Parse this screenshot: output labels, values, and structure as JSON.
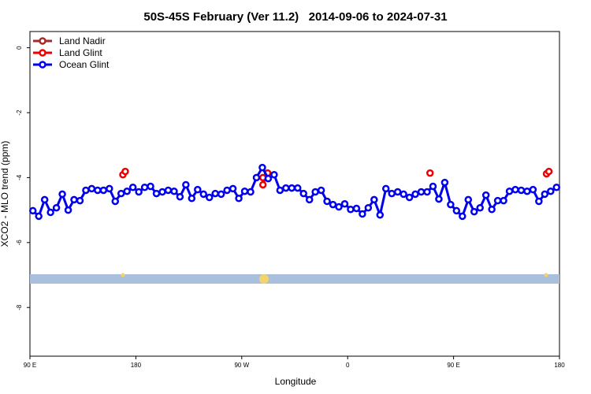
{
  "chart_data": {
    "type": "line",
    "title": "50S-45S February (Ver 11.2)   2014-09-06 to 2024-07-31",
    "x_label": "Longitude",
    "y_label": "XCO2 - MLO trend (ppm)",
    "xlim": [
      90,
      540
    ],
    "ylim": [
      -9.5,
      0.5
    ],
    "xticks": [
      {
        "value": 90,
        "label": "90 E"
      },
      180,
      {
        "value": 270,
        "label": "90 W"
      },
      {
        "value": 360,
        "label": "0"
      },
      {
        "value": 450,
        "label": "90 E"
      },
      {
        "value": 540,
        "label": "180"
      }
    ],
    "yticks": [
      0,
      -2,
      -4,
      -6,
      -8
    ],
    "legend": "top-left",
    "series": [
      {
        "name": "Land Nadir",
        "color": "#a52a2a",
        "x": [
          292
        ],
        "values": [
          -3.88
        ]
      },
      {
        "name": "Land Glint",
        "color": "#ee0000",
        "x": [
          169,
          171,
          null,
          288,
          288,
          292,
          null,
          430,
          null,
          529,
          531
        ],
        "values": [
          -3.91,
          -3.81,
          null,
          -4.0,
          -4.22,
          -3.86,
          null,
          -3.86,
          null,
          -3.88,
          -3.81
        ]
      },
      {
        "name": "Ocean Glint",
        "color": "#0000ee",
        "x": [
          92.5,
          97.5,
          102.5,
          107.5,
          112.5,
          117.5,
          122.5,
          127.5,
          132.5,
          137.5,
          142.5,
          147.5,
          152.5,
          157.5,
          162.5,
          167.5,
          172.5,
          177.5,
          182.5,
          187.5,
          192.5,
          197.5,
          202.5,
          207.5,
          212.5,
          217.5,
          222.5,
          227.5,
          232.5,
          237.5,
          242.5,
          247.5,
          252.5,
          257.5,
          262.5,
          267.5,
          272.5,
          277.5,
          282.5,
          287.5,
          292.5,
          297.5,
          302.5,
          307.5,
          312.5,
          317.5,
          322.5,
          327.5,
          332.5,
          337.5,
          342.5,
          347.5,
          352.5,
          357.5,
          362.5,
          367.5,
          372.5,
          377.5,
          382.5,
          387.5,
          392.5,
          397.5,
          402.5,
          407.5,
          412.5,
          417.5,
          422.5,
          427.5,
          432.5,
          437.5,
          442.5,
          447.5,
          452.5,
          457.5,
          462.5,
          467.5,
          472.5,
          477.5,
          482.5,
          487.5,
          492.5,
          497.5,
          502.5,
          507.5,
          512.5,
          517.5,
          522.5,
          527.5,
          532.5,
          537.5
        ],
        "values": [
          -5.02,
          -5.19,
          -4.68,
          -5.07,
          -4.93,
          -4.51,
          -5.0,
          -4.68,
          -4.71,
          -4.39,
          -4.34,
          -4.39,
          -4.39,
          -4.34,
          -4.73,
          -4.49,
          -4.42,
          -4.3,
          -4.44,
          -4.3,
          -4.27,
          -4.49,
          -4.44,
          -4.39,
          -4.42,
          -4.59,
          -4.22,
          -4.64,
          -4.37,
          -4.51,
          -4.61,
          -4.49,
          -4.51,
          -4.39,
          -4.34,
          -4.64,
          -4.42,
          -4.44,
          -4.0,
          -3.69,
          -4.03,
          -3.91,
          -4.39,
          -4.32,
          -4.32,
          -4.32,
          -4.49,
          -4.68,
          -4.44,
          -4.39,
          -4.73,
          -4.83,
          -4.9,
          -4.81,
          -4.98,
          -4.95,
          -5.12,
          -4.93,
          -4.68,
          -5.15,
          -4.34,
          -4.49,
          -4.44,
          -4.51,
          -4.61,
          -4.51,
          -4.44,
          -4.44,
          -4.27,
          -4.66,
          -4.15,
          -4.83,
          -5.02,
          -5.19,
          -4.68,
          -5.05,
          -4.93,
          -4.54,
          -4.98,
          -4.71,
          -4.71,
          -4.42,
          -4.37,
          -4.39,
          -4.42,
          -4.37,
          -4.73,
          -4.51,
          -4.42,
          -4.3
        ]
      }
    ]
  }
}
